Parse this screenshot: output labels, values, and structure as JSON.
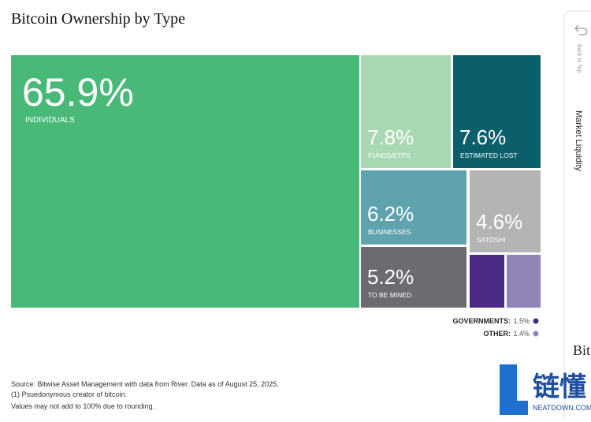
{
  "chart_data": {
    "type": "treemap",
    "title": "Bitcoin Ownership by Type",
    "categories": [
      "INDIVIDUALS",
      "FUNDS/ETPS",
      "ESTIMATED LOST",
      "BUSINESSES",
      "SATOSHI",
      "TO BE MINED",
      "GOVERNMENTS:",
      "OTHER:"
    ],
    "values": [
      65.9,
      7.8,
      7.6,
      6.2,
      4.6,
      5.2,
      1.5,
      1.4
    ],
    "value_labels": [
      "65.9%",
      "7.8%",
      "7.6%",
      "6.2%",
      "4.6%",
      "5.2%",
      "1.5%",
      "1.4%"
    ],
    "colors": [
      "#48b978",
      "#a9d9b2",
      "#0b5f6b",
      "#5fa3ae",
      "#b4b4b4",
      "#6b6b71",
      "#4a2a84",
      "#9283b9"
    ],
    "notes": [
      "Source: Bitwise Asset Management with data from River. Data as of August 25, 2025.",
      "(1) Psuedonymous creator of bitcoin.",
      "Values may not add to 100% due to rounding."
    ]
  },
  "side_panel": {
    "back": "Back to Top",
    "section": "Market Liquidity",
    "next": "Bit"
  },
  "watermark": {
    "name": "链懂",
    "site": "NEATDOWN.COM"
  }
}
